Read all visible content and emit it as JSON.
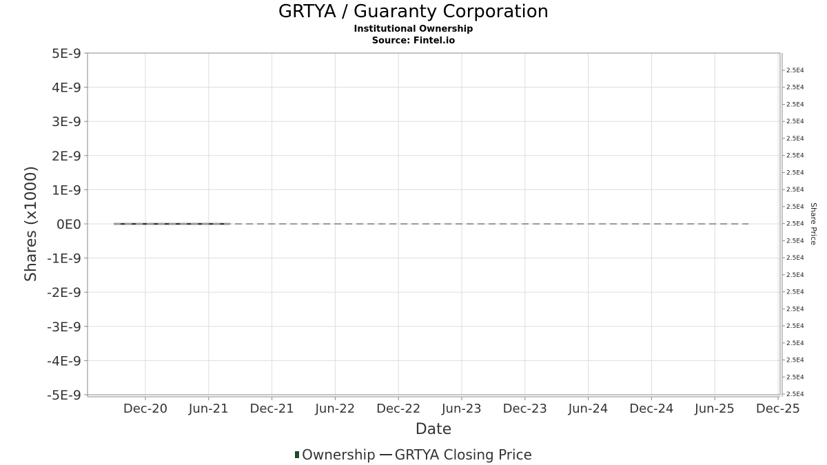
{
  "header": {
    "title": "GRTYA / Guaranty Corporation",
    "subtitle": "Institutional Ownership",
    "source": "Source: Fintel.io"
  },
  "legend": {
    "ownership": "Ownership",
    "price": "GRTYA Closing Price"
  },
  "colors": {
    "grid": "#dddddd",
    "axis": "#888888",
    "ownership": "#1f4a24",
    "price_line": "#999999",
    "ownership_line": "#333333"
  },
  "chart_data": {
    "type": "line",
    "xlabel": "Date",
    "ylabel": "Shares (x1000)",
    "y2label": "Share Price",
    "x_ticks": [
      "Dec-20",
      "Jun-21",
      "Dec-21",
      "Jun-22",
      "Dec-22",
      "Jun-23",
      "Dec-23",
      "Jun-24",
      "Dec-24",
      "Jun-25",
      "Dec-25"
    ],
    "y_ticks": [
      "5E-9",
      "4E-9",
      "3E-9",
      "2E-9",
      "1E-9",
      "0E0",
      "-1E-9",
      "-2E-9",
      "-3E-9",
      "-4E-9",
      "-5E-9"
    ],
    "ylim": [
      -5e-09,
      5e-09
    ],
    "y2_ticks": [
      "2.5E4",
      "2.5E4",
      "2.5E4",
      "2.5E4",
      "2.5E4",
      "2.5E4",
      "2.5E4",
      "2.5E4",
      "2.5E4",
      "2.5E4",
      "2.5E4",
      "2.5E4",
      "2.5E4",
      "2.5E4",
      "2.5E4",
      "2.5E4",
      "2.5E4",
      "2.5E4",
      "2.5E4",
      "2.5E4"
    ],
    "grid": true,
    "legend_position": "bottom",
    "series": [
      {
        "name": "Ownership",
        "style": "solid",
        "x": [
          "2020-09-01",
          "2021-08-01"
        ],
        "values": [
          0,
          0
        ]
      },
      {
        "name": "GRTYA Closing Price",
        "style": "dashed",
        "x": [
          "2020-09-01",
          "2025-09-01"
        ],
        "values": [
          0,
          0
        ]
      }
    ]
  }
}
